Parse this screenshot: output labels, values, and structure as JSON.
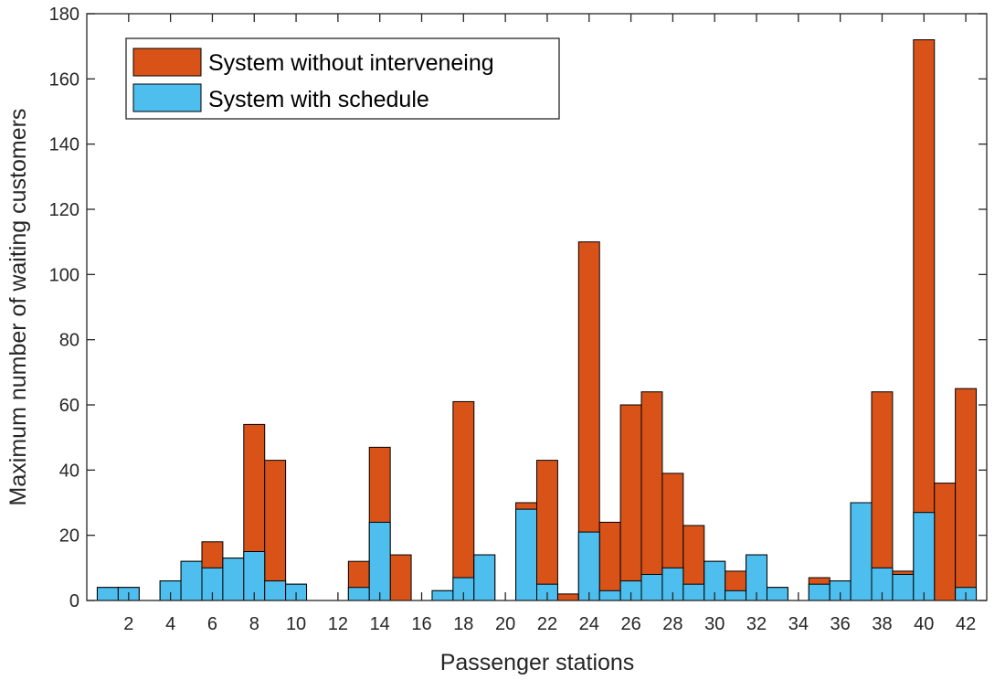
{
  "chart_data": {
    "type": "bar",
    "stacked": "overlay",
    "xlabel": "Passenger stations",
    "ylabel": "Maximum number of waiting customers",
    "ylim": [
      0,
      180
    ],
    "xlim": [
      0,
      43
    ],
    "yticks": [
      0,
      20,
      40,
      60,
      80,
      100,
      120,
      140,
      160,
      180
    ],
    "xticks": [
      2,
      4,
      6,
      8,
      10,
      12,
      14,
      16,
      18,
      20,
      22,
      24,
      26,
      28,
      30,
      32,
      34,
      36,
      38,
      40,
      42
    ],
    "grid": false,
    "legend_position": "top-left",
    "stations": [
      1,
      2,
      3,
      4,
      5,
      6,
      7,
      8,
      9,
      10,
      11,
      12,
      13,
      14,
      15,
      16,
      17,
      18,
      19,
      20,
      21,
      22,
      23,
      24,
      25,
      26,
      27,
      28,
      29,
      30,
      31,
      32,
      33,
      34,
      35,
      36,
      37,
      38,
      39,
      40,
      41,
      42
    ],
    "series": [
      {
        "name": "System without interveneing",
        "color": "#D95319",
        "values": [
          4,
          4,
          0,
          6,
          12,
          18,
          13,
          54,
          43,
          5,
          0,
          0,
          12,
          47,
          14,
          0,
          3,
          61,
          14,
          0,
          30,
          43,
          2,
          110,
          24,
          60,
          64,
          39,
          23,
          12,
          9,
          14,
          4,
          0,
          7,
          6,
          30,
          64,
          9,
          172,
          36,
          65
        ]
      },
      {
        "name": "System with schedule",
        "color": "#4DBEEE",
        "values": [
          4,
          4,
          0,
          6,
          12,
          10,
          13,
          15,
          6,
          5,
          0,
          0,
          4,
          24,
          0,
          0,
          3,
          7,
          14,
          0,
          28,
          5,
          0,
          21,
          3,
          6,
          8,
          10,
          5,
          12,
          3,
          14,
          4,
          0,
          5,
          6,
          30,
          10,
          8,
          27,
          0,
          4
        ]
      }
    ]
  }
}
